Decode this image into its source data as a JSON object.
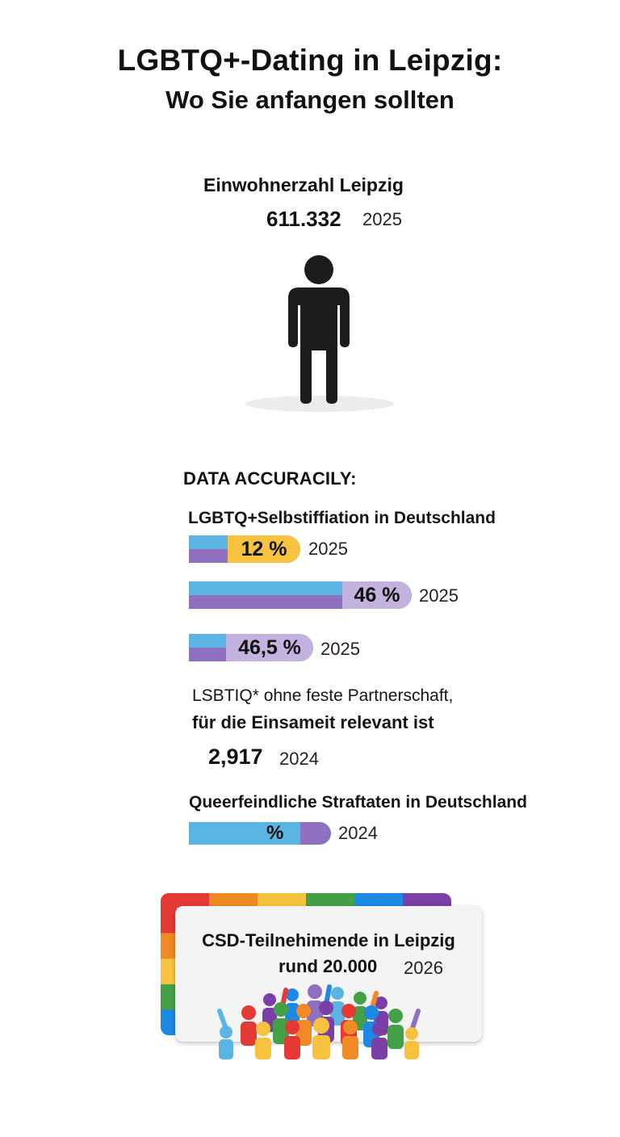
{
  "title": {
    "line1": "LGBTQ+-Dating in Leipzig:",
    "line2": "Wo Sie anfangen sollten"
  },
  "population": {
    "label": "Einwohnerzahl Leipzig",
    "value": "611.332",
    "year": "2025",
    "icon": "person-icon"
  },
  "section_heading": "DATA ACCURACILY:",
  "stats": {
    "selfid_label": "LGBTQ+Selbstiffiation in Deutschland",
    "bars": [
      {
        "value": "12 %",
        "year": "2025",
        "pill_color": "#f7c23f"
      },
      {
        "value": "46 %",
        "year": "2025",
        "pill_color": "#c3b2dd"
      },
      {
        "value": "46,5 %",
        "year": "2025",
        "pill_color": "#c3b2dd"
      }
    ],
    "single_label_line1": "LSBTIQ* ohne feste Partnerschaft,",
    "single_label_line2": "für die Einsameit relevant ist",
    "single_value": "2,917",
    "single_year": "2024",
    "crime_label": "Queerfeindliche Straftaten in Deutschland",
    "crime_value": "%",
    "crime_year": "2024"
  },
  "csd": {
    "line1": "CSD-Teilnehimende in Leipzig",
    "value": "rund 20.000",
    "year": "2026",
    "icon": "crowd-icon"
  },
  "colors": {
    "bar_blue": "#5cb4e3",
    "bar_purple": "#8e6fc0",
    "accent_yellow": "#f7c23f",
    "accent_lavender": "#c3b2dd",
    "rainbow": [
      "#e53935",
      "#f08a24",
      "#f7c23f",
      "#43a047",
      "#1e88e5",
      "#7b3fa8"
    ]
  }
}
